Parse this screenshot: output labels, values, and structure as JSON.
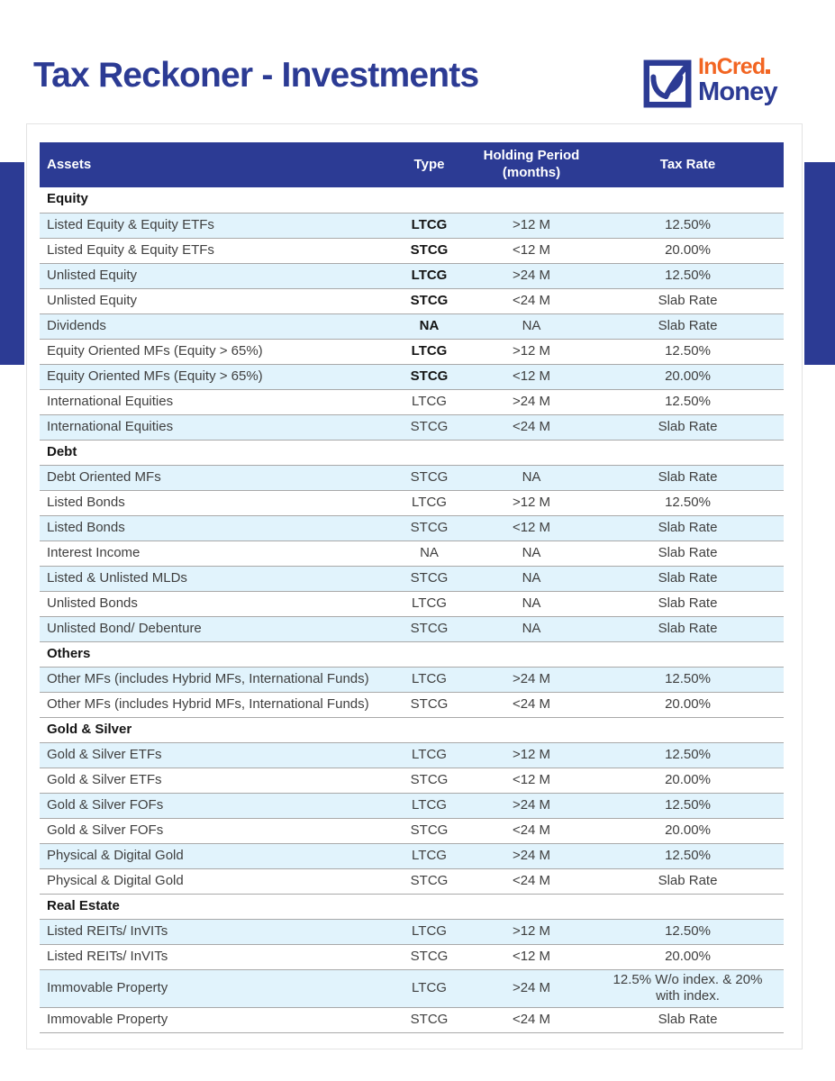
{
  "header": {
    "title": "Tax Reckoner - Investments",
    "logo": {
      "brand_top": "InCred",
      "brand_bottom": "Money",
      "icon": "incred-check-square-icon"
    }
  },
  "colors": {
    "brand_blue": "#2c3b94",
    "brand_orange": "#f26522",
    "row_alt_blue": "#e1f3fc",
    "row_border": "#a9a9a9",
    "body_text": "#3f3f3f"
  },
  "table": {
    "columns": [
      "Assets",
      "Type",
      "Holding Period (months)",
      "Tax Rate"
    ],
    "sections": [
      {
        "label": "Equity",
        "rows": [
          {
            "asset": "Listed Equity & Equity ETFs",
            "type": "LTCG",
            "type_bold": true,
            "holding": ">12 M",
            "rate": "12.50%"
          },
          {
            "asset": "Listed Equity & Equity ETFs",
            "type": "STCG",
            "type_bold": true,
            "holding": "<12 M",
            "rate": "20.00%"
          },
          {
            "asset": "Unlisted Equity",
            "type": "LTCG",
            "type_bold": true,
            "holding": ">24 M",
            "rate": "12.50%"
          },
          {
            "asset": "Unlisted Equity",
            "type": "STCG",
            "type_bold": true,
            "holding": "<24 M",
            "rate": "Slab Rate"
          },
          {
            "asset": "Dividends",
            "type": "NA",
            "type_bold": true,
            "holding": "NA",
            "rate": "Slab Rate"
          },
          {
            "asset": "Equity Oriented MFs (Equity > 65%)",
            "type": "LTCG",
            "type_bold": true,
            "holding": ">12 M",
            "rate": "12.50%"
          },
          {
            "asset": "Equity Oriented MFs (Equity > 65%)",
            "type": "STCG",
            "type_bold": true,
            "holding": "<12 M",
            "rate": "20.00%"
          },
          {
            "asset": "International Equities",
            "type": "LTCG",
            "type_bold": false,
            "holding": ">24 M",
            "rate": "12.50%"
          },
          {
            "asset": "International Equities",
            "type": "STCG",
            "type_bold": false,
            "holding": "<24 M",
            "rate": "Slab Rate"
          }
        ]
      },
      {
        "label": "Debt",
        "rows": [
          {
            "asset": "Debt Oriented MFs",
            "type": "STCG",
            "type_bold": false,
            "holding": "NA",
            "rate": "Slab Rate"
          },
          {
            "asset": "Listed Bonds",
            "type": "LTCG",
            "type_bold": false,
            "holding": ">12 M",
            "rate": "12.50%"
          },
          {
            "asset": "Listed Bonds",
            "type": "STCG",
            "type_bold": false,
            "holding": "<12 M",
            "rate": "Slab Rate"
          },
          {
            "asset": "Interest Income",
            "type": "NA",
            "type_bold": false,
            "holding": "NA",
            "rate": "Slab Rate"
          },
          {
            "asset": "Listed & Unlisted MLDs",
            "type": "STCG",
            "type_bold": false,
            "holding": "NA",
            "rate": "Slab Rate"
          },
          {
            "asset": "Unlisted Bonds",
            "type": "LTCG",
            "type_bold": false,
            "holding": "NA",
            "rate": "Slab Rate"
          },
          {
            "asset": "Unlisted Bond/ Debenture",
            "type": "STCG",
            "type_bold": false,
            "holding": "NA",
            "rate": "Slab Rate"
          }
        ]
      },
      {
        "label": "Others",
        "rows": [
          {
            "asset": "Other MFs (includes Hybrid MFs, International Funds)",
            "type": "LTCG",
            "type_bold": false,
            "holding": ">24 M",
            "rate": "12.50%"
          },
          {
            "asset": "Other MFs (includes Hybrid MFs, International Funds)",
            "type": "STCG",
            "type_bold": false,
            "holding": "<24 M",
            "rate": "20.00%"
          }
        ]
      },
      {
        "label": "Gold & Silver",
        "rows": [
          {
            "asset": "Gold & Silver ETFs",
            "type": "LTCG",
            "type_bold": false,
            "holding": ">12 M",
            "rate": "12.50%"
          },
          {
            "asset": "Gold & Silver ETFs",
            "type": "STCG",
            "type_bold": false,
            "holding": "<12 M",
            "rate": "20.00%"
          },
          {
            "asset": "Gold & Silver FOFs",
            "type": "LTCG",
            "type_bold": false,
            "holding": ">24 M",
            "rate": "12.50%"
          },
          {
            "asset": "Gold & Silver FOFs",
            "type": "STCG",
            "type_bold": false,
            "holding": "<24 M",
            "rate": "20.00%"
          },
          {
            "asset": "Physical & Digital Gold",
            "type": "LTCG",
            "type_bold": false,
            "holding": ">24 M",
            "rate": "12.50%"
          },
          {
            "asset": "Physical & Digital Gold",
            "type": "STCG",
            "type_bold": false,
            "holding": "<24 M",
            "rate": "Slab Rate"
          }
        ]
      },
      {
        "label": "Real Estate",
        "rows": [
          {
            "asset": "Listed REITs/ InVITs",
            "type": "LTCG",
            "type_bold": false,
            "holding": ">12 M",
            "rate": "12.50%"
          },
          {
            "asset": "Listed REITs/ InVITs",
            "type": "STCG",
            "type_bold": false,
            "holding": "<12 M",
            "rate": "20.00%"
          },
          {
            "asset": "Immovable Property",
            "type": "LTCG",
            "type_bold": false,
            "holding": ">24 M",
            "rate": "12.5% W/o index. & 20% with index."
          },
          {
            "asset": "Immovable Property",
            "type": "STCG",
            "type_bold": false,
            "holding": "<24 M",
            "rate": "Slab Rate"
          }
        ]
      }
    ]
  }
}
